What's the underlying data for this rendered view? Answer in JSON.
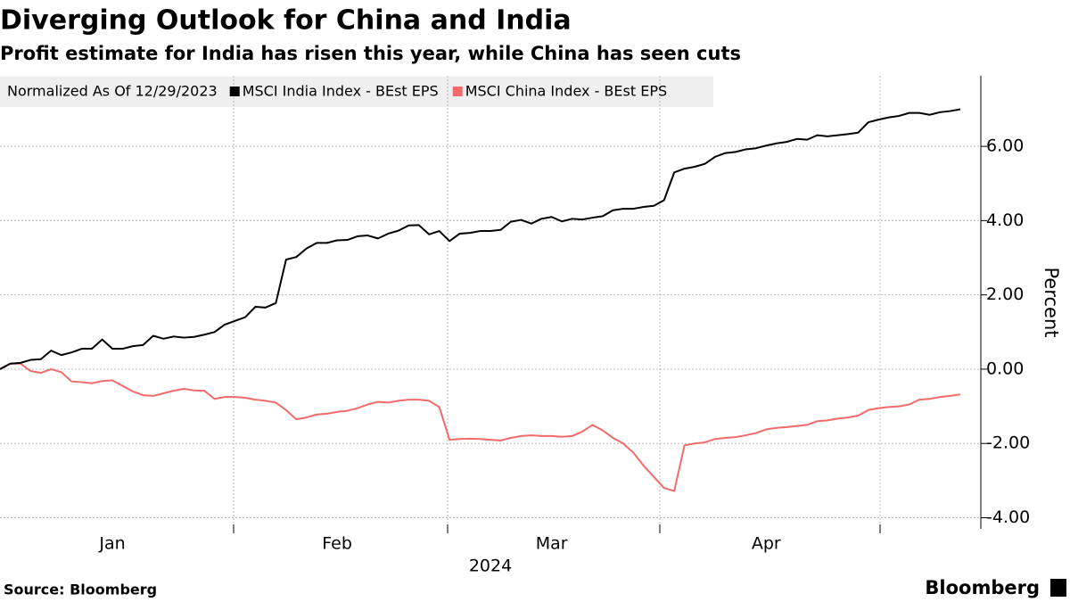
{
  "chart_data": {
    "type": "line",
    "title": "Diverging Outlook for China and India",
    "subtitle": "Profit estimate for India has risen this year, while China has seen cuts",
    "legend_title": "Normalized As Of 12/29/2023",
    "ylabel": "Percent",
    "xlabel": "2024",
    "source": "Source: Bloomberg",
    "brand": "Bloomberg",
    "ylim": [
      -4.3,
      7.9
    ],
    "yticks": [
      {
        "value": -4,
        "label": "-4.00"
      },
      {
        "value": -2,
        "label": "-2.00"
      },
      {
        "value": 0,
        "label": "0.00"
      },
      {
        "value": 2,
        "label": "2.00"
      },
      {
        "value": 4,
        "label": "4.00"
      },
      {
        "value": 6,
        "label": "6.00"
      }
    ],
    "grid": true,
    "categories": [
      null,
      null,
      null,
      null,
      null,
      null,
      null,
      null,
      null,
      null,
      null,
      "Jan",
      null,
      null,
      null,
      null,
      null,
      null,
      null,
      null,
      null,
      null,
      null,
      null,
      null,
      null,
      null,
      null,
      null,
      null,
      null,
      null,
      null,
      "Feb",
      null,
      null,
      null,
      null,
      null,
      null,
      null,
      null,
      null,
      null,
      null,
      null,
      null,
      null,
      null,
      null,
      null,
      null,
      null,
      null,
      "Mar",
      null,
      null,
      null,
      null,
      null,
      null,
      null,
      null,
      null,
      null,
      null,
      null,
      null,
      null,
      null,
      null,
      null,
      null,
      null,
      null,
      "Apr",
      null,
      null,
      null,
      null,
      null,
      null,
      null,
      null,
      null,
      null,
      null,
      null,
      null,
      null,
      null,
      null,
      null,
      null,
      null
    ],
    "series": [
      {
        "name": "MSCI India Index - BEst EPS",
        "color": "#000000",
        "values": [
          0,
          0.15,
          0.17,
          0.25,
          0.27,
          0.5,
          0.38,
          0.45,
          0.55,
          0.55,
          0.8,
          0.55,
          0.55,
          0.62,
          0.65,
          0.9,
          0.82,
          0.88,
          0.85,
          0.87,
          0.93,
          1.0,
          1.2,
          1.3,
          1.4,
          1.68,
          1.66,
          1.78,
          2.95,
          3.02,
          3.25,
          3.4,
          3.4,
          3.47,
          3.48,
          3.58,
          3.6,
          3.52,
          3.65,
          3.73,
          3.87,
          3.88,
          3.63,
          3.72,
          3.45,
          3.65,
          3.67,
          3.72,
          3.72,
          3.75,
          3.97,
          4.02,
          3.92,
          4.05,
          4.1,
          3.98,
          4.05,
          4.03,
          4.08,
          4.12,
          4.28,
          4.32,
          4.32,
          4.37,
          4.4,
          4.55,
          5.3,
          5.4,
          5.45,
          5.53,
          5.72,
          5.82,
          5.85,
          5.92,
          5.95,
          6.02,
          6.08,
          6.12,
          6.2,
          6.18,
          6.3,
          6.27,
          6.3,
          6.33,
          6.37,
          6.65,
          6.72,
          6.78,
          6.82,
          6.9,
          6.9,
          6.85,
          6.92,
          6.95,
          7.0
        ]
      },
      {
        "name": "MSCI China Index - BEst EPS",
        "color": "#f26b6b",
        "values": [
          0,
          0.15,
          0.15,
          -0.05,
          -0.1,
          0,
          -0.08,
          -0.33,
          -0.35,
          -0.38,
          -0.32,
          -0.3,
          -0.45,
          -0.6,
          -0.7,
          -0.72,
          -0.65,
          -0.58,
          -0.53,
          -0.57,
          -0.58,
          -0.8,
          -0.75,
          -0.75,
          -0.77,
          -0.82,
          -0.85,
          -0.9,
          -1.1,
          -1.35,
          -1.3,
          -1.22,
          -1.2,
          -1.15,
          -1.12,
          -1.05,
          -0.95,
          -0.88,
          -0.9,
          -0.85,
          -0.82,
          -0.82,
          -0.85,
          -1.02,
          -1.9,
          -1.88,
          -1.87,
          -1.88,
          -1.9,
          -1.92,
          -1.85,
          -1.8,
          -1.78,
          -1.8,
          -1.8,
          -1.82,
          -1.8,
          -1.68,
          -1.5,
          -1.65,
          -1.85,
          -2.0,
          -2.25,
          -2.6,
          -2.9,
          -3.2,
          -3.28,
          -2.05,
          -2.0,
          -1.97,
          -1.88,
          -1.85,
          -1.83,
          -1.78,
          -1.72,
          -1.62,
          -1.58,
          -1.56,
          -1.53,
          -1.5,
          -1.4,
          -1.38,
          -1.33,
          -1.3,
          -1.25,
          -1.1,
          -1.05,
          -1.02,
          -1.0,
          -0.95,
          -0.82,
          -0.8,
          -0.75,
          -0.72,
          -0.68
        ]
      }
    ]
  }
}
